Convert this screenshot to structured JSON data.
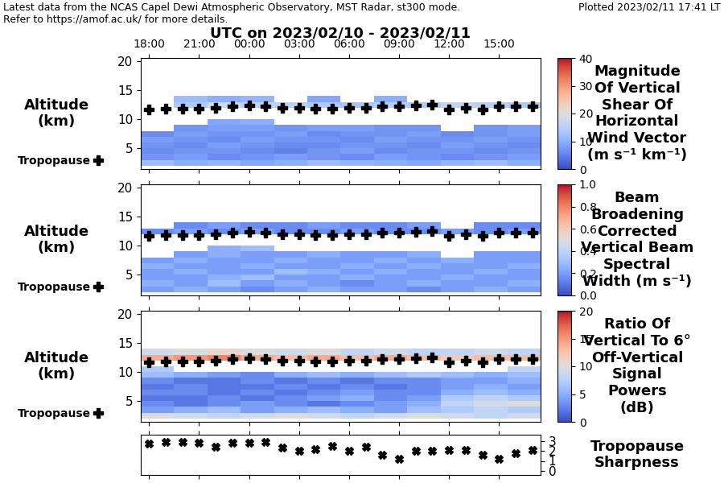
{
  "header": {
    "lines": [
      "Latest data from the NCAS Capel Dewi Atmospheric Observatory, MST Radar, st300 mode.",
      "Refer to https://amof.ac.uk/ for more details."
    ],
    "plotted": "Plotted 2023/02/11 17:41 LT",
    "title": "UTC on 2023/02/10 - 2023/02/11"
  },
  "chart_data": [
    {
      "type": "heatmap",
      "title": "Magnitude\nOf Vertical\nShear Of\nHorizontal\nWind Vector\n(m s⁻¹ km⁻¹)",
      "ylabel": "Altitude\n(km)",
      "xlim": [
        17.5,
        41.5
      ],
      "xticks": [
        {
          "value": 18,
          "label": "18:00"
        },
        {
          "value": 21,
          "label": "21:00"
        },
        {
          "value": 24,
          "label": "00:00"
        },
        {
          "value": 27,
          "label": "03:00"
        },
        {
          "value": 30,
          "label": "06:00"
        },
        {
          "value": 33,
          "label": "09:00"
        },
        {
          "value": 36,
          "label": "12:00"
        },
        {
          "value": 39,
          "label": "15:00"
        }
      ],
      "ylim": [
        1.4,
        20.6
      ],
      "yticks": [
        5,
        10,
        15,
        20
      ],
      "x_edges": [
        17.5,
        19.5,
        21.5,
        23.5,
        25.5,
        27.5,
        29.5,
        31.5,
        33.5,
        35.5,
        37.5,
        39.5,
        41.5
      ],
      "y_edges": [
        2,
        3,
        4,
        5,
        6,
        7,
        8,
        9,
        10,
        11,
        12,
        13,
        14
      ],
      "cells": [
        [
          12,
          10,
          11,
          9,
          10,
          12,
          11,
          10,
          9,
          11,
          12,
          10
        ],
        [
          7,
          8,
          6,
          7,
          8,
          7,
          6,
          8,
          7,
          6,
          7,
          8
        ],
        [
          6,
          7,
          7,
          6,
          5,
          7,
          8,
          6,
          7,
          7,
          6,
          7
        ],
        [
          7,
          6,
          8,
          7,
          6,
          6,
          7,
          7,
          6,
          8,
          7,
          6
        ],
        [
          8,
          7,
          6,
          8,
          7,
          7,
          6,
          8,
          7,
          7,
          8,
          7
        ],
        [
          6,
          8,
          7,
          7,
          8,
          6,
          7,
          7,
          8,
          6,
          7,
          8
        ],
        [
          null,
          7,
          8,
          8,
          7,
          8,
          8,
          7,
          7,
          null,
          7,
          8
        ],
        [
          null,
          null,
          9,
          10,
          null,
          null,
          null,
          null,
          null,
          null,
          null,
          null
        ],
        [
          null,
          null,
          null,
          null,
          null,
          null,
          null,
          null,
          null,
          null,
          null,
          null
        ],
        [
          null,
          null,
          null,
          null,
          null,
          null,
          null,
          null,
          null,
          null,
          null,
          null
        ],
        [
          null,
          14,
          18,
          16,
          15,
          14,
          13,
          15,
          14,
          16,
          15,
          14
        ],
        [
          null,
          12,
          10,
          11,
          null,
          9,
          null,
          10,
          null,
          null,
          null,
          null
        ]
      ],
      "colorbar": {
        "range": [
          0,
          40
        ],
        "ticks": [
          0,
          10,
          20,
          30,
          40
        ]
      },
      "tropopause": {
        "name": "Tropopause",
        "marker": "plus",
        "color": "black",
        "x": [
          18,
          19,
          20,
          21,
          22,
          23,
          24,
          25,
          26,
          27,
          28,
          29,
          30,
          31,
          32,
          33,
          34,
          35,
          36,
          37,
          38,
          39,
          40,
          41
        ],
        "values": [
          11.7,
          11.9,
          11.9,
          11.9,
          12.0,
          12.2,
          12.4,
          12.2,
          12.0,
          12.0,
          11.9,
          11.9,
          12.0,
          12.0,
          12.2,
          12.3,
          12.4,
          12.6,
          11.7,
          12.0,
          11.7,
          12.2,
          12.3,
          12.3
        ]
      }
    },
    {
      "type": "heatmap",
      "title": "Beam\nBroadening\nCorrected\nVertical Beam\nSpectral\nWidth (m s⁻¹)",
      "ylabel": "Altitude\n(km)",
      "tick_labels": "y",
      "xlim": [
        17.5,
        41.5
      ],
      "xticks": [
        {
          "value": 18,
          "label": "18:00"
        },
        {
          "value": 21,
          "label": "21:00"
        },
        {
          "value": 24,
          "label": "00:00"
        },
        {
          "value": 27,
          "label": "03:00"
        },
        {
          "value": 30,
          "label": "06:00"
        },
        {
          "value": 33,
          "label": "09:00"
        },
        {
          "value": 36,
          "label": "12:00"
        },
        {
          "value": 39,
          "label": "15:00"
        }
      ],
      "ylim": [
        1.4,
        20.6
      ],
      "yticks": [
        5,
        10,
        15,
        20
      ],
      "x_edges": [
        17.5,
        19.5,
        21.5,
        23.5,
        25.5,
        27.5,
        29.5,
        31.5,
        33.5,
        35.5,
        37.5,
        39.5,
        41.5
      ],
      "y_edges": [
        2,
        3,
        4,
        5,
        6,
        7,
        8,
        9,
        10,
        11,
        12,
        13,
        14
      ],
      "cells": [
        [
          0.2,
          0.25,
          0.2,
          0.15,
          0.2,
          0.25,
          0.2,
          0.2,
          0.15,
          0.2,
          0.25,
          0.2
        ],
        [
          0.25,
          0.2,
          0.3,
          0.2,
          0.25,
          0.2,
          0.15,
          0.2,
          0.25,
          0.2,
          0.2,
          0.25
        ],
        [
          0.2,
          0.2,
          0.25,
          0.3,
          0.2,
          0.2,
          0.25,
          0.2,
          0.2,
          0.25,
          0.2,
          0.2
        ],
        [
          0.2,
          0.25,
          0.2,
          0.2,
          0.3,
          0.25,
          0.2,
          0.25,
          0.2,
          0.2,
          0.25,
          0.2
        ],
        [
          0.25,
          0.2,
          0.2,
          0.25,
          0.2,
          0.2,
          0.25,
          0.2,
          0.25,
          0.2,
          0.2,
          0.25
        ],
        [
          0.2,
          0.25,
          0.2,
          0.2,
          0.25,
          0.2,
          0.2,
          0.25,
          0.2,
          0.25,
          0.2,
          0.2
        ],
        [
          null,
          0.2,
          0.25,
          0.2,
          0.2,
          0.25,
          0.2,
          0.2,
          0.25,
          null,
          0.2,
          0.2
        ],
        [
          null,
          null,
          0.25,
          0.3,
          null,
          null,
          null,
          null,
          null,
          null,
          null,
          null
        ],
        [
          null,
          null,
          null,
          null,
          null,
          null,
          null,
          null,
          null,
          null,
          null,
          null
        ],
        [
          null,
          null,
          null,
          null,
          null,
          null,
          null,
          null,
          null,
          null,
          null,
          null
        ],
        [
          0.15,
          0.2,
          0.15,
          0.2,
          0.15,
          0.15,
          0.2,
          0.15,
          0.15,
          0.2,
          0.15,
          0.2
        ],
        [
          null,
          0.15,
          0.2,
          0.15,
          0.15,
          0.2,
          0.15,
          0.15,
          0.2,
          null,
          0.15,
          0.15
        ]
      ],
      "colorbar": {
        "range": [
          0.0,
          1.0
        ],
        "ticks": [
          {
            "value": 0.0,
            "label": "0.0"
          },
          0.2,
          0.4,
          0.6,
          0.8,
          {
            "value": 1.0,
            "label": "1.0"
          }
        ]
      },
      "tropopause": {
        "name": "Tropopause",
        "marker": "plus",
        "color": "black",
        "x": [
          18,
          19,
          20,
          21,
          22,
          23,
          24,
          25,
          26,
          27,
          28,
          29,
          30,
          31,
          32,
          33,
          34,
          35,
          36,
          37,
          38,
          39,
          40,
          41
        ],
        "values": [
          11.7,
          11.9,
          11.9,
          11.9,
          12.0,
          12.2,
          12.4,
          12.2,
          12.0,
          12.0,
          11.9,
          11.9,
          12.0,
          12.0,
          12.2,
          12.3,
          12.4,
          12.6,
          11.7,
          12.0,
          11.7,
          12.2,
          12.3,
          12.3
        ]
      }
    },
    {
      "type": "heatmap",
      "title": "Ratio Of\nVertical To 6°\nOff-Vertical\nSignal\nPowers\n(dB)",
      "ylabel": "Altitude\n(km)",
      "tick_labels": "y",
      "xlim": [
        17.5,
        41.5
      ],
      "xticks": [
        {
          "value": 18,
          "label": "18:00"
        },
        {
          "value": 21,
          "label": "21:00"
        },
        {
          "value": 24,
          "label": "00:00"
        },
        {
          "value": 27,
          "label": "03:00"
        },
        {
          "value": 30,
          "label": "06:00"
        },
        {
          "value": 33,
          "label": "09:00"
        },
        {
          "value": 36,
          "label": "12:00"
        },
        {
          "value": 39,
          "label": "15:00"
        }
      ],
      "ylim": [
        1.4,
        20.6
      ],
      "yticks": [
        5,
        10,
        15,
        20
      ],
      "x_edges": [
        17.5,
        19.5,
        21.5,
        23.5,
        25.5,
        27.5,
        29.5,
        31.5,
        33.5,
        35.5,
        37.5,
        39.5,
        41.5
      ],
      "y_edges": [
        2,
        3,
        4,
        5,
        6,
        7,
        8,
        9,
        10,
        11,
        12,
        13,
        14
      ],
      "cells": [
        [
          10,
          9,
          8,
          9,
          10,
          9,
          8,
          9,
          10,
          9,
          8,
          9
        ],
        [
          4,
          5,
          6,
          4,
          5,
          6,
          5,
          4,
          6,
          7,
          8,
          7
        ],
        [
          3,
          2,
          3,
          4,
          3,
          2,
          3,
          4,
          5,
          8,
          9,
          10
        ],
        [
          2,
          2,
          3,
          2,
          3,
          4,
          5,
          3,
          4,
          7,
          8,
          7
        ],
        [
          3,
          3,
          2,
          3,
          2,
          3,
          4,
          3,
          3,
          5,
          6,
          5
        ],
        [
          2,
          3,
          2,
          2,
          3,
          2,
          3,
          2,
          3,
          4,
          5,
          4
        ],
        [
          3,
          2,
          2,
          3,
          2,
          3,
          2,
          3,
          3,
          4,
          4,
          5
        ],
        [
          6,
          5,
          4,
          3,
          5,
          6,
          5,
          6,
          7,
          6,
          5,
          6
        ],
        [
          7,
          null,
          null,
          null,
          null,
          null,
          null,
          null,
          null,
          null,
          null,
          8
        ],
        [
          null,
          null,
          null,
          null,
          null,
          null,
          null,
          null,
          null,
          null,
          null,
          null
        ],
        [
          14,
          15,
          16,
          14,
          13,
          14,
          13,
          14,
          13,
          12,
          13,
          13
        ],
        [
          9,
          10,
          11,
          10,
          9,
          10,
          8,
          9,
          8,
          8,
          9,
          8
        ]
      ],
      "colorbar": {
        "range": [
          0,
          20
        ],
        "ticks": [
          0,
          5,
          10,
          15,
          20
        ]
      },
      "tropopause": {
        "name": "Tropopause",
        "marker": "plus",
        "color": "black",
        "x": [
          18,
          19,
          20,
          21,
          22,
          23,
          24,
          25,
          26,
          27,
          28,
          29,
          30,
          31,
          32,
          33,
          34,
          35,
          36,
          37,
          38,
          39,
          40,
          41
        ],
        "values": [
          11.7,
          11.9,
          11.9,
          11.9,
          12.0,
          12.2,
          12.4,
          12.2,
          12.0,
          12.0,
          11.9,
          11.9,
          12.0,
          12.0,
          12.2,
          12.3,
          12.4,
          12.6,
          11.7,
          12.0,
          11.7,
          12.2,
          12.3,
          12.3
        ]
      }
    },
    {
      "type": "scatter",
      "title": "Tropopause\nSharpness",
      "tick_labels": "y",
      "marker": "x",
      "color": "black",
      "xlim": [
        17.5,
        41.5
      ],
      "xticks": [
        {
          "value": 18,
          "label": "18:00"
        },
        {
          "value": 21,
          "label": "21:00"
        },
        {
          "value": 24,
          "label": "00:00"
        },
        {
          "value": 27,
          "label": "03:00"
        },
        {
          "value": 30,
          "label": "06:00"
        },
        {
          "value": 33,
          "label": "09:00"
        },
        {
          "value": 36,
          "label": "12:00"
        },
        {
          "value": 39,
          "label": "15:00"
        }
      ],
      "ylim": [
        -0.4,
        3.6
      ],
      "yticks": [
        0,
        1,
        2,
        3
      ],
      "x": [
        18,
        19,
        20,
        21,
        22,
        23,
        24,
        25,
        26,
        27,
        28,
        29,
        30,
        31,
        32,
        33,
        34,
        35,
        36,
        37,
        38,
        39,
        40,
        41
      ],
      "values": [
        2.7,
        2.9,
        2.9,
        2.8,
        2.4,
        2.8,
        2.8,
        2.9,
        2.3,
        2.0,
        2.2,
        2.5,
        2.0,
        2.4,
        1.6,
        1.2,
        2.0,
        2.0,
        2.1,
        2.1,
        1.6,
        1.2,
        1.8,
        2.1
      ]
    }
  ]
}
